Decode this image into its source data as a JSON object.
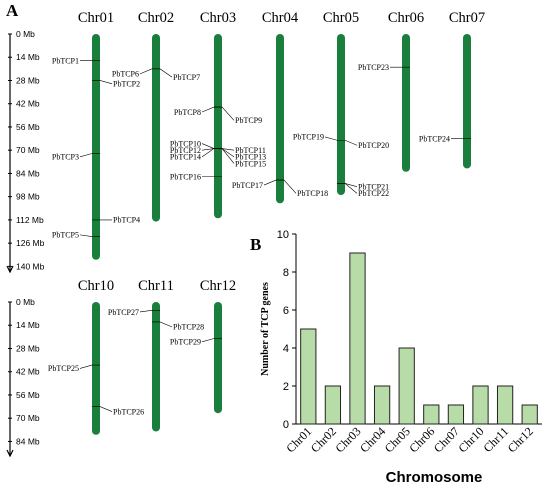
{
  "panel_a": {
    "label": "A",
    "axis_top": {
      "ticks": [
        "0 Mb",
        "14 Mb",
        "28 Mb",
        "42 Mb",
        "56 Mb",
        "70 Mb",
        "84 Mb",
        "98 Mb",
        "112 Mb",
        "126 Mb",
        "140 Mb"
      ],
      "tick_values": [
        0,
        14,
        28,
        42,
        56,
        70,
        84,
        98,
        112,
        126,
        140
      ]
    },
    "axis_bottom": {
      "ticks": [
        "0 Mb",
        "14 Mb",
        "28 Mb",
        "42 Mb",
        "56 Mb",
        "70 Mb",
        "84 Mb"
      ],
      "tick_values": [
        0,
        14,
        28,
        42,
        56,
        70,
        84
      ]
    },
    "chromosome_color": "#1a7f3c",
    "chromosomes": [
      {
        "name": "Chr01",
        "row": 0,
        "col": 0,
        "length_mb": 136
      },
      {
        "name": "Chr02",
        "row": 0,
        "col": 1,
        "length_mb": 113
      },
      {
        "name": "Chr03",
        "row": 0,
        "col": 2,
        "length_mb": 111
      },
      {
        "name": "Chr04",
        "row": 0,
        "col": 3,
        "length_mb": 102
      },
      {
        "name": "Chr05",
        "row": 0,
        "col": 4,
        "length_mb": 97
      },
      {
        "name": "Chr06",
        "row": 0,
        "col": 5,
        "length_mb": 83
      },
      {
        "name": "Chr07",
        "row": 0,
        "col": 6,
        "length_mb": 81
      },
      {
        "name": "Chr10",
        "row": 1,
        "col": 0,
        "length_mb": 80
      },
      {
        "name": "Chr11",
        "row": 1,
        "col": 1,
        "length_mb": 78
      },
      {
        "name": "Chr12",
        "row": 1,
        "col": 2,
        "length_mb": 67
      }
    ],
    "genes": [
      {
        "name": "PbTCP1",
        "chr": "Chr01",
        "pos_mb": 16,
        "label_mb": 16,
        "side": "left"
      },
      {
        "name": "PbTCP2",
        "chr": "Chr01",
        "pos_mb": 28,
        "label_mb": 30,
        "side": "right"
      },
      {
        "name": "PbTCP3",
        "chr": "Chr01",
        "pos_mb": 72,
        "label_mb": 74,
        "side": "left"
      },
      {
        "name": "PbTCP4",
        "chr": "Chr01",
        "pos_mb": 112,
        "label_mb": 112,
        "side": "right"
      },
      {
        "name": "PbTCP5",
        "chr": "Chr01",
        "pos_mb": 122,
        "label_mb": 121,
        "side": "left"
      },
      {
        "name": "PbTCP6",
        "chr": "Chr02",
        "pos_mb": 21,
        "label_mb": 24,
        "side": "left"
      },
      {
        "name": "PbTCP7",
        "chr": "Chr02",
        "pos_mb": 21,
        "label_mb": 26,
        "side": "right"
      },
      {
        "name": "PbTCP8",
        "chr": "Chr03",
        "pos_mb": 44,
        "label_mb": 47,
        "side": "left"
      },
      {
        "name": "PbTCP9",
        "chr": "Chr03",
        "pos_mb": 44,
        "label_mb": 52,
        "side": "right"
      },
      {
        "name": "PbTCP10",
        "chr": "Chr03",
        "pos_mb": 69,
        "label_mb": 66,
        "side": "left"
      },
      {
        "name": "PbTCP12",
        "chr": "Chr03",
        "pos_mb": 69,
        "label_mb": 70,
        "side": "left"
      },
      {
        "name": "PbTCP14",
        "chr": "Chr03",
        "pos_mb": 69,
        "label_mb": 74,
        "side": "left"
      },
      {
        "name": "PbTCP11",
        "chr": "Chr03",
        "pos_mb": 69,
        "label_mb": 70,
        "side": "right"
      },
      {
        "name": "PbTCP13",
        "chr": "Chr03",
        "pos_mb": 69,
        "label_mb": 74,
        "side": "right"
      },
      {
        "name": "PbTCP15",
        "chr": "Chr03",
        "pos_mb": 69,
        "label_mb": 78,
        "side": "right"
      },
      {
        "name": "PbTCP16",
        "chr": "Chr03",
        "pos_mb": 86,
        "label_mb": 86,
        "side": "left"
      },
      {
        "name": "PbTCP17",
        "chr": "Chr04",
        "pos_mb": 88,
        "label_mb": 91,
        "side": "left"
      },
      {
        "name": "PbTCP18",
        "chr": "Chr04",
        "pos_mb": 88,
        "label_mb": 96,
        "side": "right"
      },
      {
        "name": "PbTCP19",
        "chr": "Chr05",
        "pos_mb": 64,
        "label_mb": 62,
        "side": "left"
      },
      {
        "name": "PbTCP20",
        "chr": "Chr05",
        "pos_mb": 64,
        "label_mb": 67,
        "side": "right"
      },
      {
        "name": "PbTCP21",
        "chr": "Chr05",
        "pos_mb": 90,
        "label_mb": 92,
        "side": "right"
      },
      {
        "name": "PbTCP22",
        "chr": "Chr05",
        "pos_mb": 90,
        "label_mb": 96,
        "side": "right"
      },
      {
        "name": "PbTCP23",
        "chr": "Chr06",
        "pos_mb": 20,
        "label_mb": 20,
        "side": "left"
      },
      {
        "name": "PbTCP24",
        "chr": "Chr07",
        "pos_mb": 63,
        "label_mb": 63,
        "side": "left"
      },
      {
        "name": "PbTCP25",
        "chr": "Chr10",
        "pos_mb": 38,
        "label_mb": 40,
        "side": "left"
      },
      {
        "name": "PbTCP26",
        "chr": "Chr10",
        "pos_mb": 63,
        "label_mb": 66,
        "side": "right"
      },
      {
        "name": "PbTCP27",
        "chr": "Chr11",
        "pos_mb": 5,
        "label_mb": 6,
        "side": "left"
      },
      {
        "name": "PbTCP28",
        "chr": "Chr11",
        "pos_mb": 12,
        "label_mb": 15,
        "side": "right"
      },
      {
        "name": "PbTCP29",
        "chr": "Chr12",
        "pos_mb": 22,
        "label_mb": 24,
        "side": "left"
      }
    ]
  },
  "chart_data": {
    "panel_label": "B",
    "type": "bar",
    "categories": [
      "Chr01",
      "Chr02",
      "Chr03",
      "Chr04",
      "Chr05",
      "Chr06",
      "Chr07",
      "Chr10",
      "Chr11",
      "Chr12"
    ],
    "values": [
      5,
      2,
      9,
      2,
      4,
      1,
      1,
      2,
      2,
      1
    ],
    "xlabel": "Chromosome",
    "ylabel": "Number of TCP genes",
    "ylim": [
      0,
      10
    ],
    "yticks": [
      0,
      2,
      4,
      6,
      8,
      10
    ],
    "bar_color": "#b8dca8",
    "bar_edge_color": "#222222",
    "grid": false
  }
}
